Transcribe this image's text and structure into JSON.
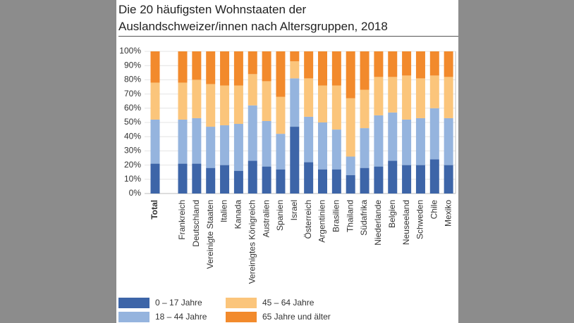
{
  "chart_data": {
    "type": "stacked_bar",
    "title": "Die 20 häufigsten Wohnstaaten der Auslandschweizer/innen nach Altersgruppen, 2018",
    "categories": [
      "Total",
      "Frankreich",
      "Deutschland",
      "Vereinigte Staaten",
      "Italien",
      "Kanada",
      "Vereinigtes Königreich",
      "Australien",
      "Spanien",
      "Israel",
      "Österreich",
      "Argentinien",
      "Brasilien",
      "Thailand",
      "Südafrika",
      "Niederlande",
      "Belgien",
      "Neuseeland",
      "Schweden",
      "Chile",
      "Mexiko"
    ],
    "series": [
      {
        "name": "0 – 17 Jahre",
        "color": "#3d65a8",
        "values": [
          21,
          21,
          21,
          18,
          20,
          16,
          23,
          19,
          17,
          47,
          22,
          17,
          17,
          13,
          18,
          19,
          23,
          20,
          20,
          24,
          20
        ]
      },
      {
        "name": "18 – 44 Jahre",
        "color": "#95b4de",
        "values": [
          31,
          31,
          32,
          29,
          28,
          33,
          39,
          32,
          25,
          34,
          32,
          33,
          28,
          13,
          28,
          36,
          34,
          32,
          33,
          36,
          33
        ]
      },
      {
        "name": "45 – 64 Jahre",
        "color": "#fbc57b",
        "values": [
          26,
          26,
          27,
          30,
          28,
          27,
          22,
          28,
          26,
          12,
          27,
          26,
          31,
          41,
          27,
          27,
          25,
          31,
          28,
          23,
          29
        ]
      },
      {
        "name": "65 Jahre und älter",
        "color": "#f28a2c",
        "values": [
          22,
          22,
          20,
          23,
          24,
          24,
          16,
          21,
          32,
          7,
          19,
          24,
          24,
          33,
          27,
          18,
          18,
          17,
          19,
          17,
          18
        ]
      }
    ],
    "ylim": [
      0,
      100
    ],
    "yticks": [
      {
        "value": 0,
        "label": "0%"
      },
      {
        "value": 10,
        "label": "10%"
      },
      {
        "value": 20,
        "label": "20%"
      },
      {
        "value": 30,
        "label": "30%"
      },
      {
        "value": 40,
        "label": "40%"
      },
      {
        "value": 50,
        "label": "50%"
      },
      {
        "value": 60,
        "label": "60%"
      },
      {
        "value": 70,
        "label": "70%"
      },
      {
        "value": 80,
        "label": "80%"
      },
      {
        "value": 90,
        "label": "90%"
      },
      {
        "value": 100,
        "label": "100%"
      }
    ],
    "grid": true
  }
}
